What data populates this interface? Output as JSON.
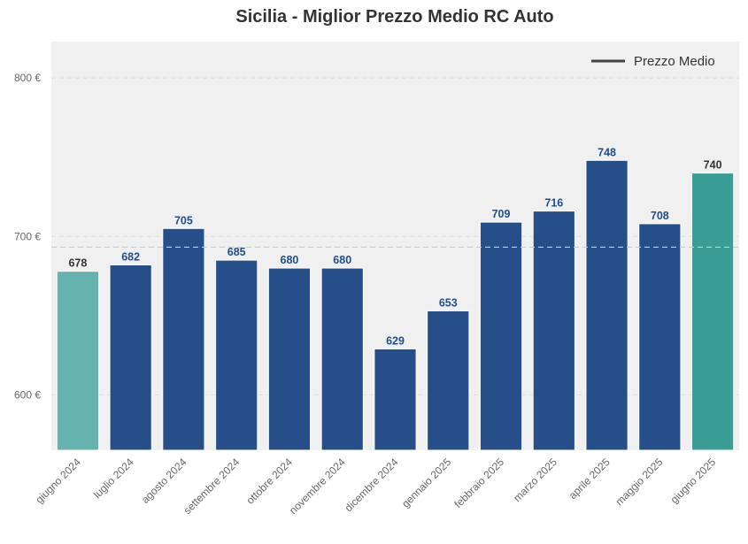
{
  "chart_data": {
    "type": "bar",
    "title": "Sicilia - Miglior Prezzo Medio RC Auto",
    "xlabel": "",
    "ylabel": "",
    "categories": [
      "giugno 2024",
      "luglio 2024",
      "agosto 2024",
      "settembre 2024",
      "ottobre 2024",
      "novembre 2024",
      "dicembre 2024",
      "gennaio 2025",
      "febbraio 2025",
      "marzo 2025",
      "aprile 2025",
      "maggio 2025",
      "giugno 2025"
    ],
    "values": [
      678,
      682,
      705,
      685,
      680,
      680,
      629,
      653,
      709,
      716,
      748,
      708,
      740
    ],
    "bar_colors": [
      "#66b2ae",
      "#264f8a",
      "#264f8a",
      "#264f8a",
      "#264f8a",
      "#264f8a",
      "#264f8a",
      "#264f8a",
      "#264f8a",
      "#264f8a",
      "#264f8a",
      "#264f8a",
      "#3b9e96"
    ],
    "data_label_colors": [
      "#333333",
      "#1f4e8c",
      "#1f4e8c",
      "#1f4e8c",
      "#1f4e8c",
      "#1f4e8c",
      "#1f4e8c",
      "#1f4e8c",
      "#1f4e8c",
      "#1f4e8c",
      "#1f4e8c",
      "#1f4e8c",
      "#333333"
    ],
    "ylim": [
      565,
      823
    ],
    "yticks": [
      600,
      700,
      800
    ],
    "ytick_labels": [
      "600 €",
      "700 €",
      "800 €"
    ],
    "reference_line": {
      "name": "Prezzo Medio",
      "value": 693.2,
      "color": "#cccccc",
      "style": "dashed"
    },
    "legend": {
      "placement": "top-right",
      "entries": [
        {
          "label": "Prezzo Medio",
          "color": "#444444"
        }
      ]
    },
    "grid": true,
    "background": "#f0f0f0"
  }
}
